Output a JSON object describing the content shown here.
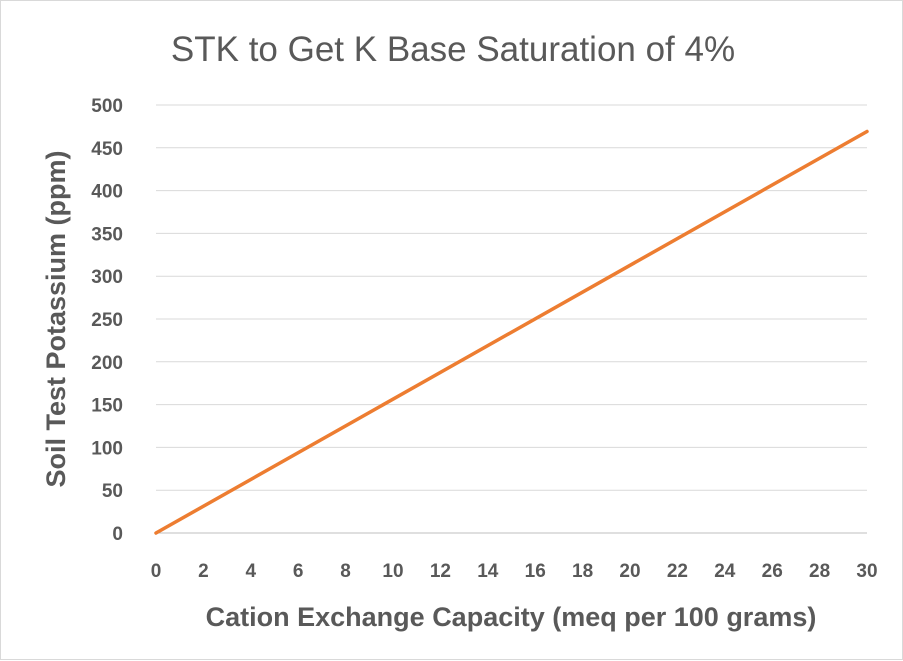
{
  "chart_data": {
    "type": "line",
    "title": "STK to Get K Base Saturation of 4%",
    "xlabel": "Cation Exchange Capacity (meq per 100 grams)",
    "ylabel": "Soil Test Potassium (ppm)",
    "xlim": [
      0,
      30
    ],
    "ylim": [
      0,
      500
    ],
    "x_ticks": [
      0,
      2,
      4,
      6,
      8,
      10,
      12,
      14,
      16,
      18,
      20,
      22,
      24,
      26,
      28,
      30
    ],
    "y_ticks": [
      0,
      50,
      100,
      150,
      200,
      250,
      300,
      350,
      400,
      450,
      500
    ],
    "grid": true,
    "legend": "none",
    "series": [
      {
        "color": "#ed7d31",
        "x": [
          0,
          30
        ],
        "y": [
          0,
          469
        ]
      }
    ]
  }
}
